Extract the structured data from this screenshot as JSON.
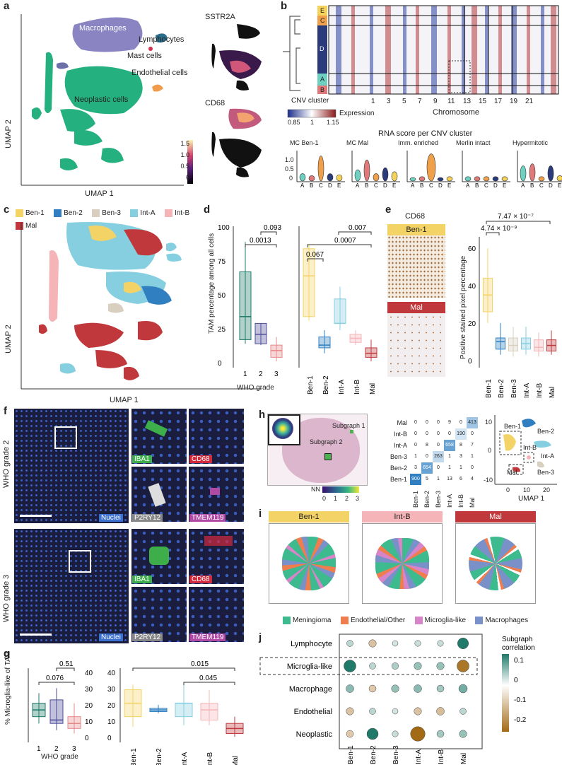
{
  "panel_labels": {
    "a": "a",
    "b": "b",
    "c": "c",
    "d": "d",
    "e": "e",
    "f": "f",
    "g": "g",
    "h": "h",
    "i": "i",
    "j": "j"
  },
  "panel_a": {
    "ylabel": "UMAP 2",
    "xlabel": "UMAP 1",
    "clusters": [
      "Macrophages",
      "Lymphocytes",
      "Mast cells",
      "Endothelial cells",
      "Neoplastic cells"
    ],
    "marker1": "SSTR2A",
    "marker2": "CD68",
    "colorbar_ticks": [
      "1.5",
      "1.0",
      "0.5",
      "0"
    ]
  },
  "panel_b": {
    "cnv_clusters": [
      "E",
      "C",
      "D",
      "A",
      "B"
    ],
    "cnv_colors": [
      "#f5d35a",
      "#f0a04b",
      "#2b3a7a",
      "#6ed0c0",
      "#e07a7a"
    ],
    "cnv_cluster_label": "CNV cluster",
    "expression_label": "Expression",
    "expression_ticks": [
      "0.85",
      "1",
      "1.15"
    ],
    "chromosome_label": "Chromosome",
    "chromosome_ticks": [
      "1",
      "3",
      "5",
      "7",
      "9",
      "11",
      "13",
      "15",
      "17",
      "19",
      "21"
    ],
    "violin_title": "RNA score per CNV cluster",
    "violin_panels": [
      "MC Ben-1",
      "MC Mal",
      "Imm. enriched",
      "Merlin intact",
      "Hypermitotic"
    ],
    "violin_yticks": [
      "1.0",
      "0.5",
      "0"
    ],
    "violin_xticks": [
      "A",
      "B",
      "C",
      "D",
      "E"
    ]
  },
  "panel_c": {
    "legend": [
      {
        "label": "Ben-1",
        "color": "#f4d366"
      },
      {
        "label": "Ben-2",
        "color": "#2f7fc1"
      },
      {
        "label": "Ben-3",
        "color": "#d8cfc0"
      },
      {
        "label": "Int-A",
        "color": "#86cfe0"
      },
      {
        "label": "Int-B",
        "color": "#f5b5b8"
      },
      {
        "label": "Mal",
        "color": "#c0383b"
      }
    ],
    "ylabel": "UMAP 2",
    "xlabel": "UMAP 1"
  },
  "panel_d": {
    "ylabel": "TAM percentage among all cells",
    "xlabel_left": "WHO grade",
    "yticks": [
      "100",
      "75",
      "50",
      "25",
      "0"
    ],
    "grade_ticks": [
      "1",
      "2",
      "3"
    ],
    "pvals_left": [
      "0.093",
      "0.0013"
    ],
    "pvals_right": [
      "0.007",
      "0.0007",
      "0.067"
    ],
    "groups_right": [
      "Ben-1",
      "Ben-2",
      "Int-A",
      "Int-B",
      "Mal"
    ]
  },
  "panel_e": {
    "title": "CD68",
    "label_ben1": "Ben-1",
    "label_mal": "Mal",
    "ylabel": "Positive stained pixel percentage",
    "yticks": [
      "60",
      "40",
      "20",
      "0"
    ],
    "pval_top": "7.47 × 10⁻⁷",
    "pval_mid": "4.74 × 10⁻⁹",
    "groups": [
      "Ben-1",
      "Ben-2",
      "Ben-3",
      "Int-A",
      "Int-B",
      "Mal"
    ]
  },
  "panel_f": {
    "row1_label": "WHO grade 2",
    "row2_label": "WHO grade 3",
    "channels": [
      "IBA1",
      "CD68",
      "Nuclei",
      "P2RY12",
      "TMEM119"
    ],
    "channel_colors": [
      "#3dae4a",
      "#d02a3c",
      "#3b6fd0",
      "#888888",
      "#b04aa5"
    ]
  },
  "panel_g": {
    "ylabel": "% Microglia-like of TAM",
    "xlabel_left": "WHO grade",
    "yticks": [
      "40",
      "30",
      "20",
      "10",
      "0"
    ],
    "grade_ticks": [
      "1",
      "2",
      "3"
    ],
    "pvals_left": [
      "0.51",
      "0.076"
    ],
    "pvals_right": [
      "0.015",
      "0.045"
    ],
    "groups_right": [
      "Ben-1",
      "Ben-2",
      "Int-A",
      "Int-B",
      "Mal"
    ]
  },
  "panel_h": {
    "subgraph1": "Subgraph 1",
    "subgraph2": "Subgraph 2",
    "nn_label": "NN",
    "nn_ticks": [
      "0",
      "1",
      "2",
      "3"
    ],
    "matrix_rows": [
      "Mal",
      "Int-B",
      "Int-A",
      "Ben-3",
      "Ben-2",
      "Ben-1"
    ],
    "matrix_cols": [
      "Ben-1",
      "Ben-2",
      "Ben-3",
      "Int-A",
      "Int-B",
      "Mal"
    ],
    "matrix": [
      [
        "0",
        "0",
        "0",
        "9",
        "0",
        "413"
      ],
      [
        "0",
        "0",
        "0",
        "0",
        "190",
        "0"
      ],
      [
        "0",
        "8",
        "0",
        "658",
        "8",
        "7"
      ],
      [
        "1",
        "0",
        "263",
        "1",
        "3",
        "1"
      ],
      [
        "3",
        "654",
        "0",
        "1",
        "1",
        "0"
      ],
      [
        "900",
        "5",
        "1",
        "13",
        "6",
        "4"
      ]
    ],
    "umap_labels": [
      "Ben-1",
      "Ben-2",
      "Int-A",
      "Int-B",
      "Ben-3",
      "Mal"
    ],
    "umap_yticks": [
      "10",
      "0",
      "-10"
    ],
    "umap_xticks": [
      "0",
      "10",
      "20"
    ],
    "umap_xlabel": "UMAP 1"
  },
  "panel_i": {
    "headers": [
      {
        "label": "Ben-1",
        "color": "#f4d366"
      },
      {
        "label": "Int-B",
        "color": "#f5b5b8"
      },
      {
        "label": "Mal",
        "color": "#c0383b"
      }
    ],
    "legend": [
      {
        "label": "Meningioma",
        "color": "#3dbb8f"
      },
      {
        "label": "Endothelial/Other",
        "color": "#ef7d4e"
      },
      {
        "label": "Microglia-like",
        "color": "#d884c8"
      },
      {
        "label": "Macrophages",
        "color": "#7a90c8"
      }
    ]
  },
  "panel_j": {
    "rows": [
      "Lymphocyte",
      "Microglia-like",
      "Macrophage",
      "Endothelial",
      "Neoplastic"
    ],
    "cols": [
      "Ben-1",
      "Ben-2",
      "Ben-3",
      "Int-A",
      "Int-B",
      "Mal"
    ],
    "legend_title": "Subgraph correlation",
    "legend_ticks": [
      "0.1",
      "0",
      "-0.1",
      "-0.2"
    ]
  },
  "colors": {
    "teal": "#1f7a6a",
    "purple": "#4d4c99",
    "brown": "#a36a16"
  }
}
